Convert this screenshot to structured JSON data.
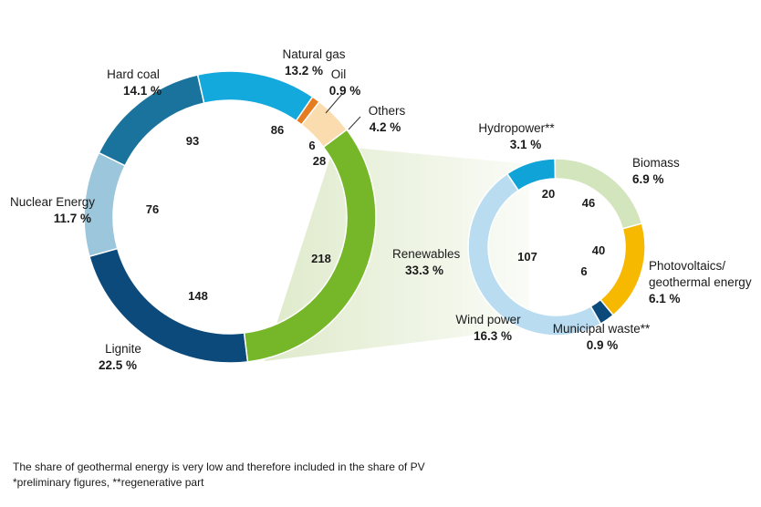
{
  "chart_data": [
    {
      "type": "donut",
      "title": "",
      "categories": [
        "Lignite",
        "Nuclear Energy",
        "Hard coal",
        "Natural gas",
        "Oil",
        "Others",
        "Renewables"
      ],
      "values": [
        148,
        76,
        93,
        86,
        6,
        28,
        218
      ],
      "shares": [
        "22.5 %",
        "11.7 %",
        "14.1 %",
        "13.2 %",
        "0.9 %",
        "4.2 %",
        "33.3 %"
      ],
      "value_labels": [
        "148",
        "76",
        "93",
        "86",
        "6",
        "28",
        "218"
      ],
      "colors": [
        "#0c4a7c",
        "#9cc6dc",
        "#1a739d",
        "#14a9dc",
        "#e57c1f",
        "#fbdcae",
        "#76b72a"
      ]
    },
    {
      "type": "donut",
      "title": "",
      "categories": [
        "Hydropower**",
        "Biomass",
        "Photovoltaics/ geothermal energy",
        "Municipal waste**",
        "Wind power"
      ],
      "values": [
        20,
        46,
        40,
        6,
        107
      ],
      "shares": [
        "3.1 %",
        "6.9 %",
        "6.1 %",
        "0.9 %",
        "16.3 %"
      ],
      "value_labels": [
        "20",
        "46",
        "40",
        "6",
        "107"
      ],
      "colors": [
        "#0fa3d8",
        "#d3e5bd",
        "#f7b800",
        "#0c4a7c",
        "#b9dcf0"
      ]
    }
  ],
  "labels": {
    "lignite": {
      "name": "Lignite",
      "share": "22.5 %"
    },
    "nuclear": {
      "name": "Nuclear Energy",
      "share": "11.7 %"
    },
    "hardcoal": {
      "name": "Hard coal",
      "share": "14.1 %"
    },
    "natgas": {
      "name": "Natural gas",
      "share": "13.2 %"
    },
    "oil": {
      "name": "Oil",
      "share": "0.9 %"
    },
    "others": {
      "name": "Others",
      "share": "4.2 %"
    },
    "renewables": {
      "name": "Renewables",
      "share": "33.3 %"
    },
    "hydro": {
      "name": "Hydropower**",
      "share": "3.1 %"
    },
    "biomass": {
      "name": "Biomass",
      "share": "6.9 %"
    },
    "pv": {
      "name1": "Photovoltaics/",
      "name2": "geothermal energy",
      "share": "6.1 %"
    },
    "waste": {
      "name": "Municipal waste**",
      "share": "0.9 %"
    },
    "wind": {
      "name": "Wind power",
      "share": "16.3 %"
    }
  },
  "footnotes": {
    "line1": "The share of geothermal energy is very low and therefore included in the share of PV",
    "line2": "*preliminary figures, **regenerative part"
  }
}
